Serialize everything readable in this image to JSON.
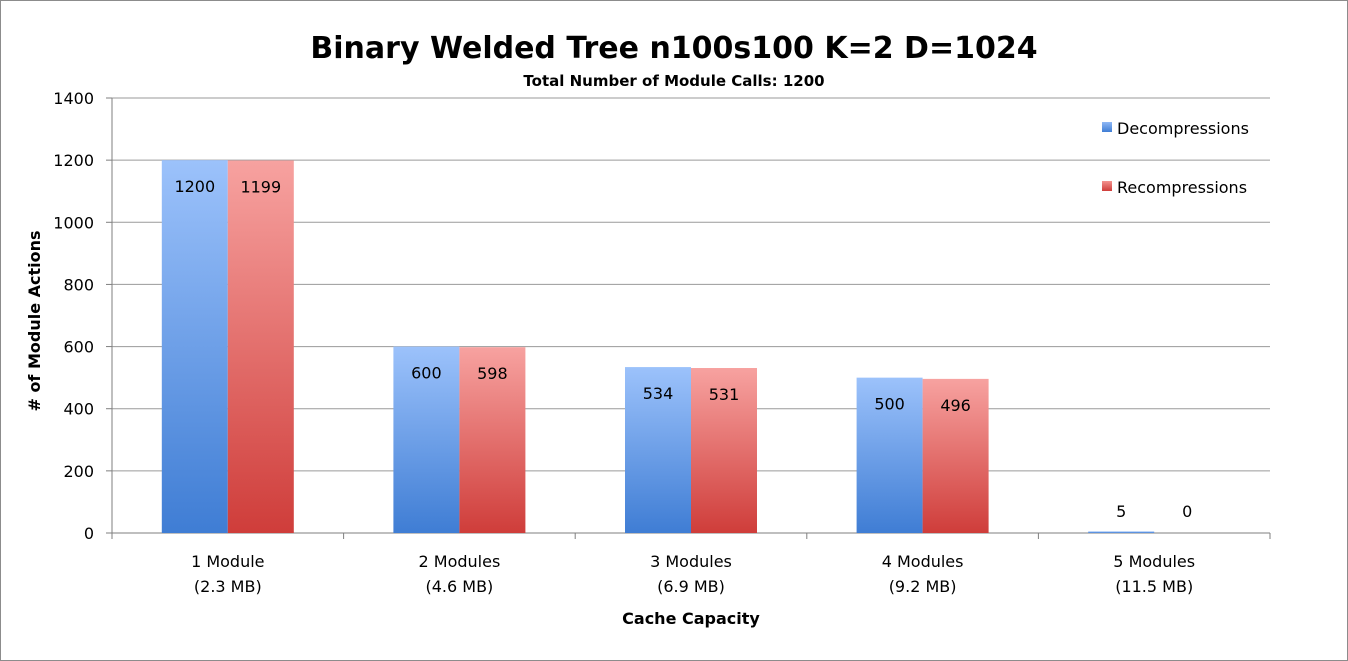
{
  "chart_data": {
    "type": "bar",
    "title": "Binary Welded Tree n100s100 K=2 D=1024",
    "subtitle": "Total Number of Module Calls: 1200",
    "xlabel": "Cache Capacity",
    "ylabel": "# of Module Actions",
    "ylim": [
      0,
      1400
    ],
    "yticks": [
      0,
      200,
      400,
      600,
      800,
      1000,
      1200,
      1400
    ],
    "grid": true,
    "legend_position": "top-right",
    "categories": [
      [
        "1 Module",
        "(2.3 MB)"
      ],
      [
        "2 Modules",
        "(4.6 MB)"
      ],
      [
        "3 Modules",
        "(6.9 MB)"
      ],
      [
        "4 Modules",
        "(9.2 MB)"
      ],
      [
        "5 Modules",
        "(11.5 MB)"
      ]
    ],
    "series": [
      {
        "name": "Decompressions",
        "values": [
          1200,
          600,
          534,
          500,
          5
        ],
        "color": "#5f93dc"
      },
      {
        "name": "Recompressions",
        "values": [
          1199,
          598,
          531,
          496,
          0
        ],
        "color": "#e0625f"
      }
    ]
  }
}
